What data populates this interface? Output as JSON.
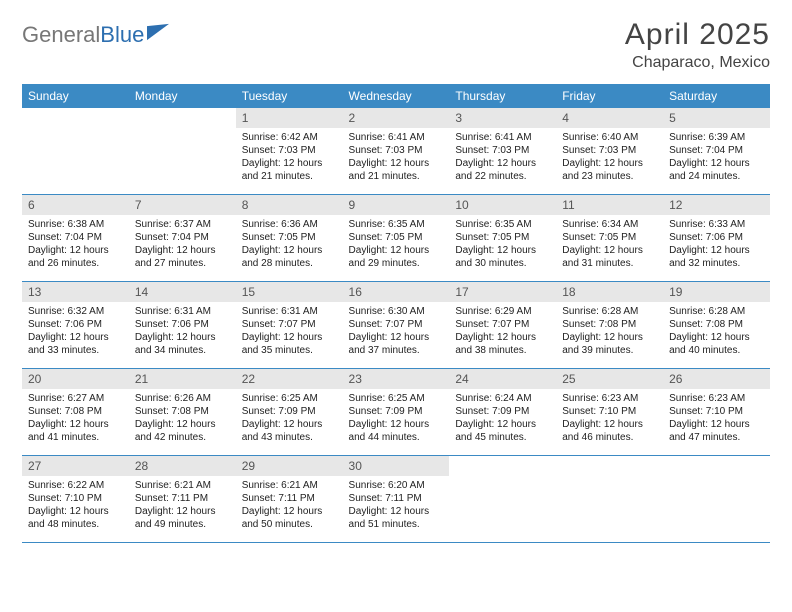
{
  "header": {
    "logo_text_1": "General",
    "logo_text_2": "Blue",
    "month_title": "April 2025",
    "location": "Chaparaco, Mexico"
  },
  "colors": {
    "header_bg": "#3b8ac4",
    "header_text": "#ffffff",
    "daynum_bg": "#e7e7e7",
    "row_border": "#3b8ac4",
    "text": "#222222",
    "logo_accent": "#2d6fb0"
  },
  "columns": [
    "Sunday",
    "Monday",
    "Tuesday",
    "Wednesday",
    "Thursday",
    "Friday",
    "Saturday"
  ],
  "weeks": [
    [
      {
        "n": "",
        "sr": "",
        "ss": "",
        "dl1": "",
        "dl2": ""
      },
      {
        "n": "",
        "sr": "",
        "ss": "",
        "dl1": "",
        "dl2": ""
      },
      {
        "n": "1",
        "sr": "Sunrise: 6:42 AM",
        "ss": "Sunset: 7:03 PM",
        "dl1": "Daylight: 12 hours",
        "dl2": "and 21 minutes."
      },
      {
        "n": "2",
        "sr": "Sunrise: 6:41 AM",
        "ss": "Sunset: 7:03 PM",
        "dl1": "Daylight: 12 hours",
        "dl2": "and 21 minutes."
      },
      {
        "n": "3",
        "sr": "Sunrise: 6:41 AM",
        "ss": "Sunset: 7:03 PM",
        "dl1": "Daylight: 12 hours",
        "dl2": "and 22 minutes."
      },
      {
        "n": "4",
        "sr": "Sunrise: 6:40 AM",
        "ss": "Sunset: 7:03 PM",
        "dl1": "Daylight: 12 hours",
        "dl2": "and 23 minutes."
      },
      {
        "n": "5",
        "sr": "Sunrise: 6:39 AM",
        "ss": "Sunset: 7:04 PM",
        "dl1": "Daylight: 12 hours",
        "dl2": "and 24 minutes."
      }
    ],
    [
      {
        "n": "6",
        "sr": "Sunrise: 6:38 AM",
        "ss": "Sunset: 7:04 PM",
        "dl1": "Daylight: 12 hours",
        "dl2": "and 26 minutes."
      },
      {
        "n": "7",
        "sr": "Sunrise: 6:37 AM",
        "ss": "Sunset: 7:04 PM",
        "dl1": "Daylight: 12 hours",
        "dl2": "and 27 minutes."
      },
      {
        "n": "8",
        "sr": "Sunrise: 6:36 AM",
        "ss": "Sunset: 7:05 PM",
        "dl1": "Daylight: 12 hours",
        "dl2": "and 28 minutes."
      },
      {
        "n": "9",
        "sr": "Sunrise: 6:35 AM",
        "ss": "Sunset: 7:05 PM",
        "dl1": "Daylight: 12 hours",
        "dl2": "and 29 minutes."
      },
      {
        "n": "10",
        "sr": "Sunrise: 6:35 AM",
        "ss": "Sunset: 7:05 PM",
        "dl1": "Daylight: 12 hours",
        "dl2": "and 30 minutes."
      },
      {
        "n": "11",
        "sr": "Sunrise: 6:34 AM",
        "ss": "Sunset: 7:05 PM",
        "dl1": "Daylight: 12 hours",
        "dl2": "and 31 minutes."
      },
      {
        "n": "12",
        "sr": "Sunrise: 6:33 AM",
        "ss": "Sunset: 7:06 PM",
        "dl1": "Daylight: 12 hours",
        "dl2": "and 32 minutes."
      }
    ],
    [
      {
        "n": "13",
        "sr": "Sunrise: 6:32 AM",
        "ss": "Sunset: 7:06 PM",
        "dl1": "Daylight: 12 hours",
        "dl2": "and 33 minutes."
      },
      {
        "n": "14",
        "sr": "Sunrise: 6:31 AM",
        "ss": "Sunset: 7:06 PM",
        "dl1": "Daylight: 12 hours",
        "dl2": "and 34 minutes."
      },
      {
        "n": "15",
        "sr": "Sunrise: 6:31 AM",
        "ss": "Sunset: 7:07 PM",
        "dl1": "Daylight: 12 hours",
        "dl2": "and 35 minutes."
      },
      {
        "n": "16",
        "sr": "Sunrise: 6:30 AM",
        "ss": "Sunset: 7:07 PM",
        "dl1": "Daylight: 12 hours",
        "dl2": "and 37 minutes."
      },
      {
        "n": "17",
        "sr": "Sunrise: 6:29 AM",
        "ss": "Sunset: 7:07 PM",
        "dl1": "Daylight: 12 hours",
        "dl2": "and 38 minutes."
      },
      {
        "n": "18",
        "sr": "Sunrise: 6:28 AM",
        "ss": "Sunset: 7:08 PM",
        "dl1": "Daylight: 12 hours",
        "dl2": "and 39 minutes."
      },
      {
        "n": "19",
        "sr": "Sunrise: 6:28 AM",
        "ss": "Sunset: 7:08 PM",
        "dl1": "Daylight: 12 hours",
        "dl2": "and 40 minutes."
      }
    ],
    [
      {
        "n": "20",
        "sr": "Sunrise: 6:27 AM",
        "ss": "Sunset: 7:08 PM",
        "dl1": "Daylight: 12 hours",
        "dl2": "and 41 minutes."
      },
      {
        "n": "21",
        "sr": "Sunrise: 6:26 AM",
        "ss": "Sunset: 7:08 PM",
        "dl1": "Daylight: 12 hours",
        "dl2": "and 42 minutes."
      },
      {
        "n": "22",
        "sr": "Sunrise: 6:25 AM",
        "ss": "Sunset: 7:09 PM",
        "dl1": "Daylight: 12 hours",
        "dl2": "and 43 minutes."
      },
      {
        "n": "23",
        "sr": "Sunrise: 6:25 AM",
        "ss": "Sunset: 7:09 PM",
        "dl1": "Daylight: 12 hours",
        "dl2": "and 44 minutes."
      },
      {
        "n": "24",
        "sr": "Sunrise: 6:24 AM",
        "ss": "Sunset: 7:09 PM",
        "dl1": "Daylight: 12 hours",
        "dl2": "and 45 minutes."
      },
      {
        "n": "25",
        "sr": "Sunrise: 6:23 AM",
        "ss": "Sunset: 7:10 PM",
        "dl1": "Daylight: 12 hours",
        "dl2": "and 46 minutes."
      },
      {
        "n": "26",
        "sr": "Sunrise: 6:23 AM",
        "ss": "Sunset: 7:10 PM",
        "dl1": "Daylight: 12 hours",
        "dl2": "and 47 minutes."
      }
    ],
    [
      {
        "n": "27",
        "sr": "Sunrise: 6:22 AM",
        "ss": "Sunset: 7:10 PM",
        "dl1": "Daylight: 12 hours",
        "dl2": "and 48 minutes."
      },
      {
        "n": "28",
        "sr": "Sunrise: 6:21 AM",
        "ss": "Sunset: 7:11 PM",
        "dl1": "Daylight: 12 hours",
        "dl2": "and 49 minutes."
      },
      {
        "n": "29",
        "sr": "Sunrise: 6:21 AM",
        "ss": "Sunset: 7:11 PM",
        "dl1": "Daylight: 12 hours",
        "dl2": "and 50 minutes."
      },
      {
        "n": "30",
        "sr": "Sunrise: 6:20 AM",
        "ss": "Sunset: 7:11 PM",
        "dl1": "Daylight: 12 hours",
        "dl2": "and 51 minutes."
      },
      {
        "n": "",
        "sr": "",
        "ss": "",
        "dl1": "",
        "dl2": ""
      },
      {
        "n": "",
        "sr": "",
        "ss": "",
        "dl1": "",
        "dl2": ""
      },
      {
        "n": "",
        "sr": "",
        "ss": "",
        "dl1": "",
        "dl2": ""
      }
    ]
  ]
}
